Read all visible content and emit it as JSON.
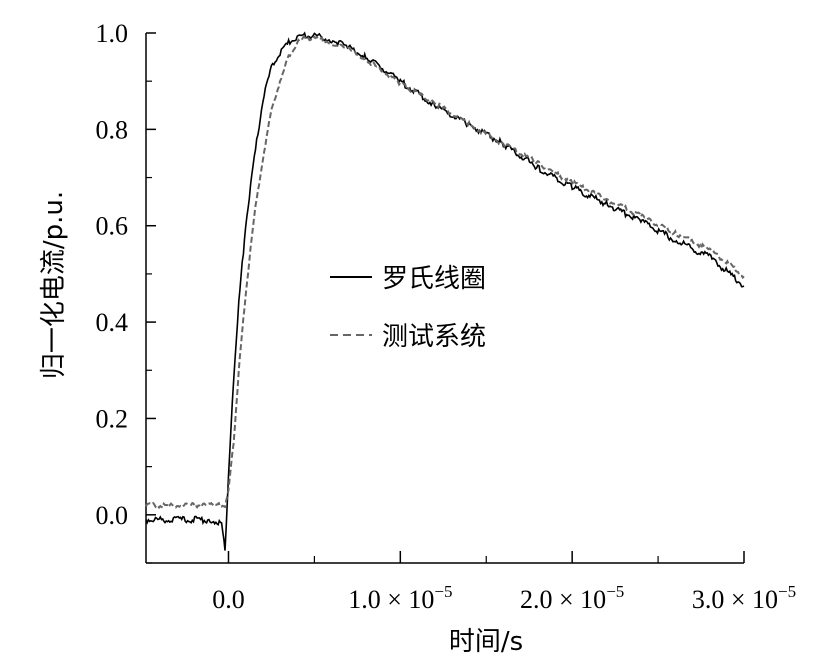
{
  "chart_data": {
    "type": "line",
    "title": "",
    "xlabel": "时间/s",
    "ylabel": "归一化电流/p.u.",
    "xlim": [
      -4.8e-06,
      3e-05
    ],
    "ylim": [
      -0.1,
      1.0
    ],
    "xticks": [
      {
        "value": 0.0,
        "label": "0.0",
        "sup": ""
      },
      {
        "value": 1e-05,
        "label": "1.0 × 10",
        "sup": "−5"
      },
      {
        "value": 2e-05,
        "label": "2.0 × 10",
        "sup": "−5"
      },
      {
        "value": 3e-05,
        "label": "3.0 × 10",
        "sup": "−5"
      }
    ],
    "yticks": [
      {
        "value": 0.0,
        "label": "0.0"
      },
      {
        "value": 0.2,
        "label": "0.2"
      },
      {
        "value": 0.4,
        "label": "0.4"
      },
      {
        "value": 0.6,
        "label": "0.6"
      },
      {
        "value": 0.8,
        "label": "0.8"
      },
      {
        "value": 1.0,
        "label": "1.0"
      }
    ],
    "grid": false,
    "legend_position": "center",
    "series": [
      {
        "name": "罗氏线圈",
        "style": "solid",
        "color": "#000000",
        "points": [
          [
            -4.8e-06,
            -0.01
          ],
          [
            -3e-06,
            -0.01
          ],
          [
            -1e-06,
            -0.01
          ],
          [
            -4e-07,
            -0.02
          ],
          [
            -2e-07,
            -0.07
          ],
          [
            0.0,
            0.08
          ],
          [
            3e-07,
            0.28
          ],
          [
            6e-07,
            0.44
          ],
          [
            1e-06,
            0.6
          ],
          [
            1.5e-06,
            0.74
          ],
          [
            2e-06,
            0.86
          ],
          [
            2.5e-06,
            0.93
          ],
          [
            3e-06,
            0.96
          ],
          [
            3.5e-06,
            0.98
          ],
          [
            4e-06,
            0.99
          ],
          [
            4.5e-06,
            0.995
          ],
          [
            5e-06,
            0.995
          ],
          [
            6e-06,
            0.985
          ],
          [
            7e-06,
            0.97
          ],
          [
            8e-06,
            0.95
          ],
          [
            1e-05,
            0.9
          ],
          [
            1.2e-05,
            0.85
          ],
          [
            1.4e-05,
            0.81
          ],
          [
            1.6e-05,
            0.77
          ],
          [
            1.8e-05,
            0.72
          ],
          [
            2e-05,
            0.68
          ],
          [
            2.2e-05,
            0.645
          ],
          [
            2.4e-05,
            0.61
          ],
          [
            2.6e-05,
            0.57
          ],
          [
            2.8e-05,
            0.535
          ],
          [
            3e-05,
            0.475
          ]
        ]
      },
      {
        "name": "测试系统",
        "style": "dashed",
        "color": "#666666",
        "points": [
          [
            -4.8e-06,
            0.02
          ],
          [
            -3e-06,
            0.02
          ],
          [
            -1e-06,
            0.02
          ],
          [
            -2e-07,
            0.02
          ],
          [
            0.0,
            0.05
          ],
          [
            3e-07,
            0.15
          ],
          [
            6e-07,
            0.3
          ],
          [
            1e-06,
            0.46
          ],
          [
            1.5e-06,
            0.62
          ],
          [
            2e-06,
            0.74
          ],
          [
            2.5e-06,
            0.84
          ],
          [
            3e-06,
            0.9
          ],
          [
            3.5e-06,
            0.95
          ],
          [
            4e-06,
            0.98
          ],
          [
            4.5e-06,
            0.99
          ],
          [
            5e-06,
            0.99
          ],
          [
            6e-06,
            0.98
          ],
          [
            7e-06,
            0.965
          ],
          [
            8e-06,
            0.945
          ],
          [
            1e-05,
            0.895
          ],
          [
            1.2e-05,
            0.855
          ],
          [
            1.4e-05,
            0.81
          ],
          [
            1.6e-05,
            0.77
          ],
          [
            1.8e-05,
            0.73
          ],
          [
            2e-05,
            0.69
          ],
          [
            2.2e-05,
            0.655
          ],
          [
            2.4e-05,
            0.62
          ],
          [
            2.6e-05,
            0.585
          ],
          [
            2.8e-05,
            0.55
          ],
          [
            3e-05,
            0.495
          ]
        ]
      }
    ]
  }
}
